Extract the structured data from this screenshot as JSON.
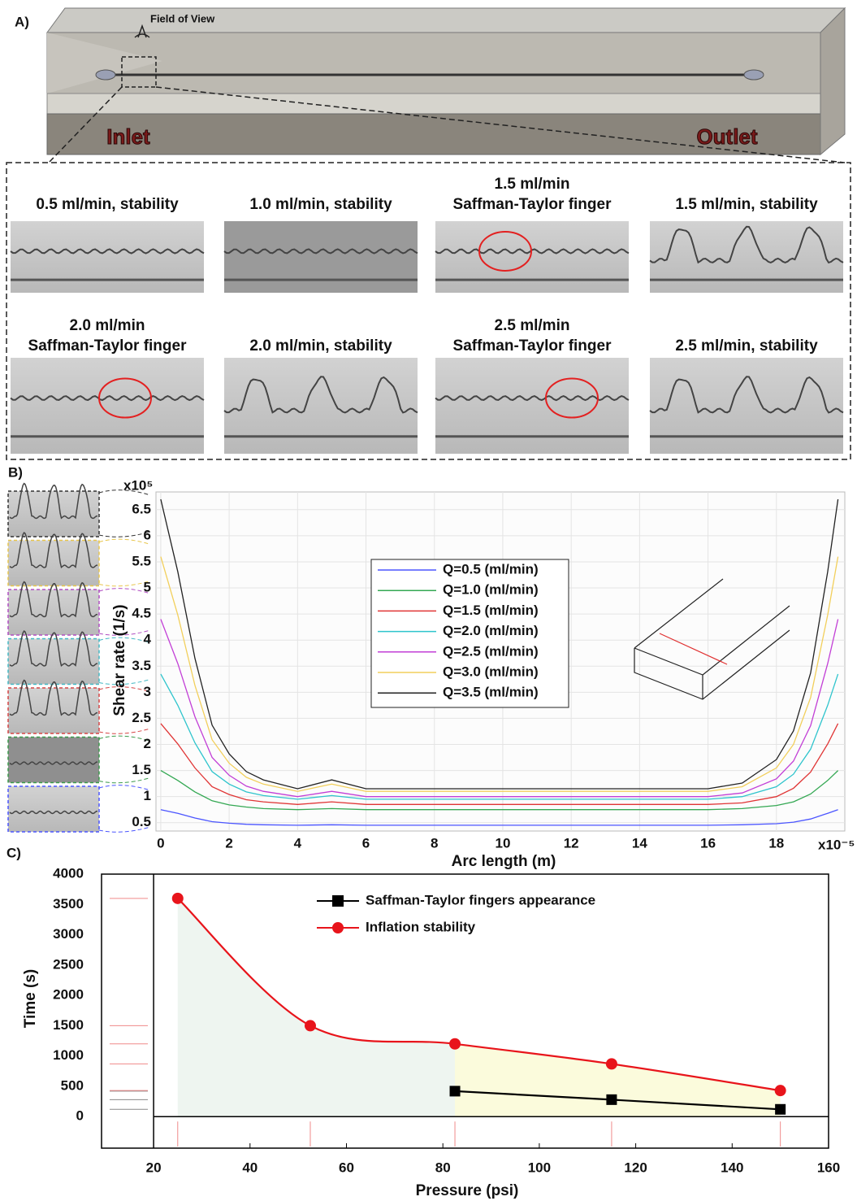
{
  "panel_a": {
    "label": "A)",
    "field_of_view": "Field of View",
    "inlet": "Inlet",
    "outlet": "Outlet",
    "tiles": [
      {
        "caption": [
          "0.5 ml/min, stability"
        ]
      },
      {
        "caption": [
          "1.0 ml/min, stability"
        ]
      },
      {
        "caption": [
          "1.5 ml/min",
          "Saffman-Taylor finger"
        ]
      },
      {
        "caption": [
          "1.5 ml/min, stability"
        ]
      },
      {
        "caption": [
          "2.0 ml/min",
          "Saffman-Taylor finger"
        ]
      },
      {
        "caption": [
          "2.0 ml/min, stability"
        ]
      },
      {
        "caption": [
          "2.5 ml/min",
          "Saffman-Taylor finger"
        ]
      },
      {
        "caption": [
          "2.5 ml/min, stability"
        ]
      }
    ]
  },
  "chart_data": [
    {
      "type": "line",
      "panel_label": "B)",
      "x_label": "Arc length (m)",
      "y_label": "Shear rate (1/s)",
      "x_multiplier": "x10⁻⁵",
      "y_multiplier": "x10⁵",
      "xlim": [
        -0.14,
        20
      ],
      "ylim": [
        0.34,
        6.84
      ],
      "xticks": [
        0,
        2,
        4,
        6,
        8,
        10,
        12,
        14,
        16,
        18
      ],
      "yticks": [
        0.5,
        1,
        1.5,
        2,
        2.5,
        3,
        3.5,
        4,
        4.5,
        5,
        5.5,
        6,
        6.5
      ],
      "grid": true,
      "legend": "center",
      "x": [
        0,
        0.5,
        1,
        1.5,
        2,
        2.5,
        3,
        4,
        5,
        6,
        8,
        10,
        12,
        14,
        16,
        17,
        18,
        18.5,
        19,
        19.5,
        19.8
      ],
      "series": [
        {
          "name": "Q=0.5 (ml/min)",
          "color": "#4b55ff",
          "values": [
            0.75,
            0.68,
            0.59,
            0.52,
            0.49,
            0.47,
            0.46,
            0.45,
            0.46,
            0.45,
            0.45,
            0.45,
            0.45,
            0.45,
            0.45,
            0.46,
            0.48,
            0.51,
            0.57,
            0.68,
            0.75
          ]
        },
        {
          "name": "Q=1.0 (ml/min)",
          "color": "#34a853",
          "values": [
            1.5,
            1.31,
            1.09,
            0.92,
            0.84,
            0.8,
            0.77,
            0.75,
            0.77,
            0.75,
            0.75,
            0.75,
            0.75,
            0.75,
            0.75,
            0.77,
            0.83,
            0.9,
            1.05,
            1.31,
            1.5
          ]
        },
        {
          "name": "Q=1.5 (ml/min)",
          "color": "#e03535",
          "values": [
            2.4,
            2.01,
            1.55,
            1.19,
            1.04,
            0.94,
            0.9,
            0.85,
            0.9,
            0.85,
            0.85,
            0.85,
            0.85,
            0.85,
            0.85,
            0.88,
            1.0,
            1.16,
            1.47,
            2.01,
            2.4
          ]
        },
        {
          "name": "Q=2.0 (ml/min)",
          "color": "#2ec4cc",
          "values": [
            3.35,
            2.75,
            2.03,
            1.48,
            1.24,
            1.09,
            1.02,
            0.95,
            1.02,
            0.95,
            0.95,
            0.95,
            0.95,
            0.95,
            0.95,
            1.0,
            1.19,
            1.43,
            1.91,
            2.75,
            3.35
          ]
        },
        {
          "name": "Q=2.5 (ml/min)",
          "color": "#c23fd6",
          "values": [
            4.4,
            3.55,
            2.53,
            1.75,
            1.41,
            1.2,
            1.1,
            1.0,
            1.1,
            1.0,
            1.0,
            1.0,
            1.0,
            1.0,
            1.0,
            1.07,
            1.34,
            1.68,
            2.36,
            3.55,
            4.4
          ]
        },
        {
          "name": "Q=3.0 (ml/min)",
          "color": "#f2cf5b",
          "values": [
            5.6,
            4.48,
            3.13,
            2.09,
            1.64,
            1.37,
            1.24,
            1.1,
            1.24,
            1.1,
            1.1,
            1.1,
            1.1,
            1.1,
            1.1,
            1.19,
            1.55,
            2.0,
            2.9,
            4.48,
            5.6
          ]
        },
        {
          "name": "Q=3.5 (ml/min)",
          "color": "#222222",
          "values": [
            6.7,
            5.31,
            3.65,
            2.37,
            1.82,
            1.48,
            1.32,
            1.15,
            1.32,
            1.15,
            1.15,
            1.15,
            1.15,
            1.15,
            1.15,
            1.26,
            1.71,
            2.26,
            3.37,
            5.31,
            6.7
          ]
        }
      ]
    },
    {
      "type": "line",
      "panel_label": "C)",
      "x_label": "Pressure (psi)",
      "y_label": "Time (s)",
      "xlim": [
        9.2,
        160
      ],
      "ylim": [
        -520,
        4000
      ],
      "xticks": [
        20,
        40,
        60,
        80,
        100,
        120,
        140,
        160
      ],
      "yticks": [
        0,
        500,
        1000,
        1500,
        2000,
        2500,
        3000,
        3500,
        4000
      ],
      "grid": false,
      "legend": "top",
      "series": [
        {
          "name": "Saffman-Taylor fingers appearance",
          "color": "#000000",
          "marker": "square",
          "x": [
            82.5,
            115,
            150
          ],
          "values": [
            420,
            280,
            120
          ]
        },
        {
          "name": "Inflation stability",
          "color": "#e8141b",
          "marker": "circle",
          "smooth": true,
          "x": [
            25,
            52.5,
            82.5,
            115,
            150
          ],
          "values": [
            3600,
            1500,
            1200,
            870,
            430
          ]
        }
      ]
    }
  ]
}
